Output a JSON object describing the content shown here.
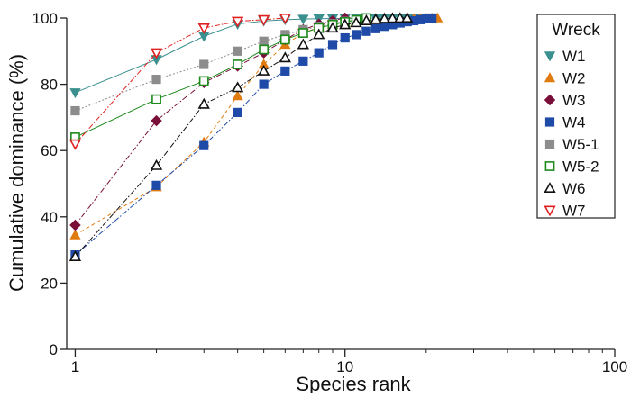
{
  "chart_data": {
    "type": "line",
    "xlabel": "Species rank",
    "ylabel": "Cumulative dominance (%)",
    "x_scale": "log",
    "xlim": [
      0.93,
      100
    ],
    "ylim": [
      0,
      100
    ],
    "x_ticks": [
      1,
      10,
      100
    ],
    "x_tick_labels": [
      "1",
      "10",
      "100"
    ],
    "y_ticks": [
      0,
      20,
      40,
      60,
      80,
      100
    ],
    "y_tick_labels": [
      "0",
      "20",
      "40",
      "60",
      "80",
      "100"
    ],
    "grid": false,
    "legend": {
      "title": "Wreck",
      "position": "top-right"
    },
    "series": [
      {
        "name": "W1",
        "color": "#3a8f8f",
        "marker": "triangle-down",
        "filled": true,
        "dash": "solid",
        "x": [
          1,
          2,
          3,
          4,
          5,
          6,
          7,
          8,
          9,
          10,
          11,
          12,
          13,
          14,
          15,
          16,
          17,
          18,
          19,
          20,
          21
        ],
        "y": [
          77.5,
          87.5,
          94.5,
          98.2,
          99.1,
          99.5,
          99.7,
          99.8,
          99.85,
          99.9,
          99.92,
          99.94,
          99.95,
          99.96,
          99.97,
          99.98,
          99.98,
          99.99,
          99.99,
          99.99,
          100
        ]
      },
      {
        "name": "W2",
        "color": "#e07b10",
        "marker": "triangle-up",
        "filled": true,
        "dash": "dashed",
        "x": [
          1,
          2,
          3,
          4,
          5,
          6,
          7,
          8,
          9,
          10,
          11,
          12,
          13,
          14,
          15,
          16,
          17,
          18,
          19,
          20,
          21,
          22
        ],
        "y": [
          34.5,
          49,
          62.5,
          76.5,
          86,
          92,
          95.5,
          97.2,
          98.1,
          98.6,
          99,
          99.2,
          99.4,
          99.5,
          99.6,
          99.7,
          99.75,
          99.8,
          99.85,
          99.9,
          99.95,
          100
        ]
      },
      {
        "name": "W3",
        "color": "#7a0f3a",
        "marker": "diamond",
        "filled": true,
        "dash": "dashdot",
        "x": [
          1,
          2,
          3,
          4,
          5,
          6,
          7,
          8,
          9,
          10
        ],
        "y": [
          37.5,
          69,
          80.5,
          85.5,
          89.5,
          93.5,
          96.5,
          98.2,
          99.2,
          100
        ]
      },
      {
        "name": "W4",
        "color": "#1f4aa8",
        "marker": "square",
        "filled": true,
        "dash": "dashdot",
        "x": [
          1,
          2,
          3,
          4,
          5,
          6,
          7,
          8,
          9,
          10,
          11,
          12,
          13,
          14,
          15,
          16,
          17,
          18,
          19,
          20,
          21
        ],
        "y": [
          28.5,
          49.5,
          61.5,
          71.5,
          80,
          84,
          87,
          89.5,
          92,
          94,
          95,
          96,
          96.8,
          97.5,
          98,
          98.5,
          98.9,
          99.2,
          99.5,
          99.8,
          100
        ]
      },
      {
        "name": "W5-1",
        "color": "#8c8c8c",
        "marker": "square",
        "filled": true,
        "dash": "dotted",
        "x": [
          1,
          2,
          3,
          4,
          5,
          6,
          7,
          8,
          9,
          10,
          11,
          12
        ],
        "y": [
          72,
          81.5,
          86,
          90,
          93,
          95,
          96.5,
          97.5,
          98.3,
          99,
          99.5,
          100
        ]
      },
      {
        "name": "W5-2",
        "color": "#1b8a1b",
        "marker": "square",
        "filled": false,
        "dash": "solid",
        "x": [
          1,
          2,
          3,
          4,
          5,
          6,
          7,
          8,
          9,
          10,
          11,
          12
        ],
        "y": [
          64,
          75.5,
          81,
          86,
          90.5,
          93.5,
          95.5,
          97,
          98,
          98.8,
          99.4,
          100
        ]
      },
      {
        "name": "W6",
        "color": "#111111",
        "marker": "triangle-up",
        "filled": false,
        "dash": "dashdot",
        "x": [
          1,
          2,
          3,
          4,
          5,
          6,
          7,
          8,
          9,
          10,
          11,
          12,
          13,
          14,
          15,
          16,
          17
        ],
        "y": [
          28,
          55.5,
          74,
          79,
          84,
          88,
          92,
          95,
          97,
          98,
          98.6,
          99.2,
          99.6,
          99.8,
          99.9,
          99.95,
          100
        ]
      },
      {
        "name": "W7",
        "color": "#e02020",
        "marker": "triangle-down",
        "filled": false,
        "dash": "dashdot",
        "x": [
          1,
          2,
          3,
          4,
          5,
          6
        ],
        "y": [
          62,
          89.5,
          97,
          99,
          99.5,
          100
        ]
      }
    ]
  }
}
